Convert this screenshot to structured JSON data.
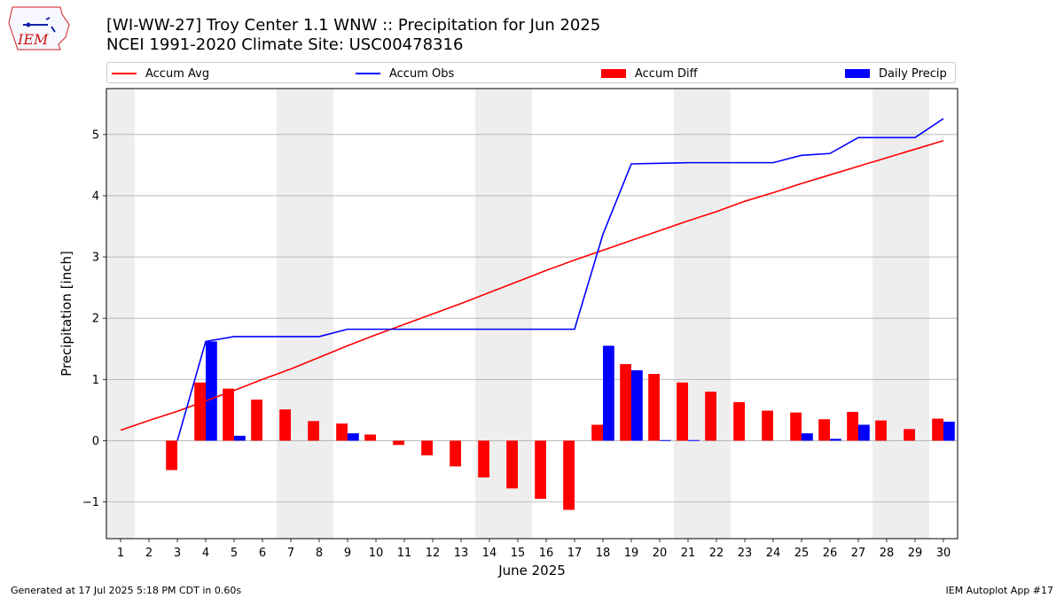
{
  "header": {
    "title_line1": "[WI-WW-27] Troy Center 1.1 WNW :: Precipitation for Jun 2025",
    "title_line2": "NCEI 1991-2020 Climate Site: USC00478316",
    "logo_text": "IEM"
  },
  "footer": {
    "left": "Generated at 17 Jul 2025 5:18 PM CDT in 0.60s",
    "right": "IEM Autoplot App #17"
  },
  "colors": {
    "accum_avg": "#ff0000",
    "accum_obs": "#0000ff",
    "accum_diff": "#ff0000",
    "daily_precip": "#0000ff",
    "weekend_shade": "#eeeeee",
    "grid": "#b0b0b0"
  },
  "legend": {
    "accum_avg": "Accum Avg",
    "accum_obs": "Accum Obs",
    "accum_diff": "Accum Diff",
    "daily_precip": "Daily Precip"
  },
  "chart_data": {
    "type": "bar",
    "xlabel": "June 2025",
    "ylabel": "Precipitation [inch]",
    "ylim": [
      -1.6,
      5.75
    ],
    "yticks": [
      -1,
      0,
      1,
      2,
      3,
      4,
      5
    ],
    "ytick_labels": [
      "−1",
      "0",
      "1",
      "2",
      "3",
      "4",
      "5"
    ],
    "grid": "horizontal",
    "legend_placement": "top",
    "days": [
      1,
      2,
      3,
      4,
      5,
      6,
      7,
      8,
      9,
      10,
      11,
      12,
      13,
      14,
      15,
      16,
      17,
      18,
      19,
      20,
      21,
      22,
      23,
      24,
      25,
      26,
      27,
      28,
      29,
      30
    ],
    "shaded_days": [
      1,
      7,
      8,
      14,
      15,
      21,
      22,
      28,
      29
    ],
    "series": [
      {
        "name": "Accum Avg",
        "kind": "line",
        "values": [
          0.17,
          0.33,
          0.48,
          0.65,
          0.82,
          1.0,
          1.17,
          1.36,
          1.55,
          1.73,
          1.9,
          2.07,
          2.24,
          2.42,
          2.6,
          2.78,
          2.95,
          3.11,
          3.27,
          3.43,
          3.59,
          3.74,
          3.91,
          4.05,
          4.2,
          4.34,
          4.48,
          4.62,
          4.76,
          4.9
        ]
      },
      {
        "name": "Accum Obs",
        "kind": "line",
        "start_day": 3,
        "values": [
          0,
          1.62,
          1.7,
          1.7,
          1.7,
          1.7,
          1.82,
          1.82,
          1.82,
          1.82,
          1.82,
          1.82,
          1.82,
          1.82,
          1.82,
          3.37,
          4.52,
          4.53,
          4.54,
          4.54,
          4.54,
          4.54,
          4.66,
          4.69,
          4.95,
          4.95,
          4.95,
          5.26
        ]
      },
      {
        "name": "Accum Diff",
        "kind": "bar",
        "values": [
          0,
          0,
          -0.48,
          0.95,
          0.85,
          0.67,
          0.51,
          0.32,
          0.28,
          0.1,
          -0.07,
          -0.24,
          -0.42,
          -0.6,
          -0.78,
          -0.95,
          -1.13,
          0.26,
          1.25,
          1.09,
          0.95,
          0.8,
          0.63,
          0.49,
          0.46,
          0.35,
          0.47,
          0.33,
          0.19,
          0.36
        ]
      },
      {
        "name": "Daily Precip",
        "kind": "bar",
        "values": [
          0,
          0,
          0,
          1.62,
          0.08,
          0,
          0,
          0,
          0.12,
          0,
          0,
          0,
          0,
          0,
          0,
          0,
          0,
          1.55,
          1.15,
          0.01,
          0.01,
          0,
          0,
          0,
          0.12,
          0.03,
          0.26,
          0,
          0,
          0.31
        ]
      }
    ]
  }
}
